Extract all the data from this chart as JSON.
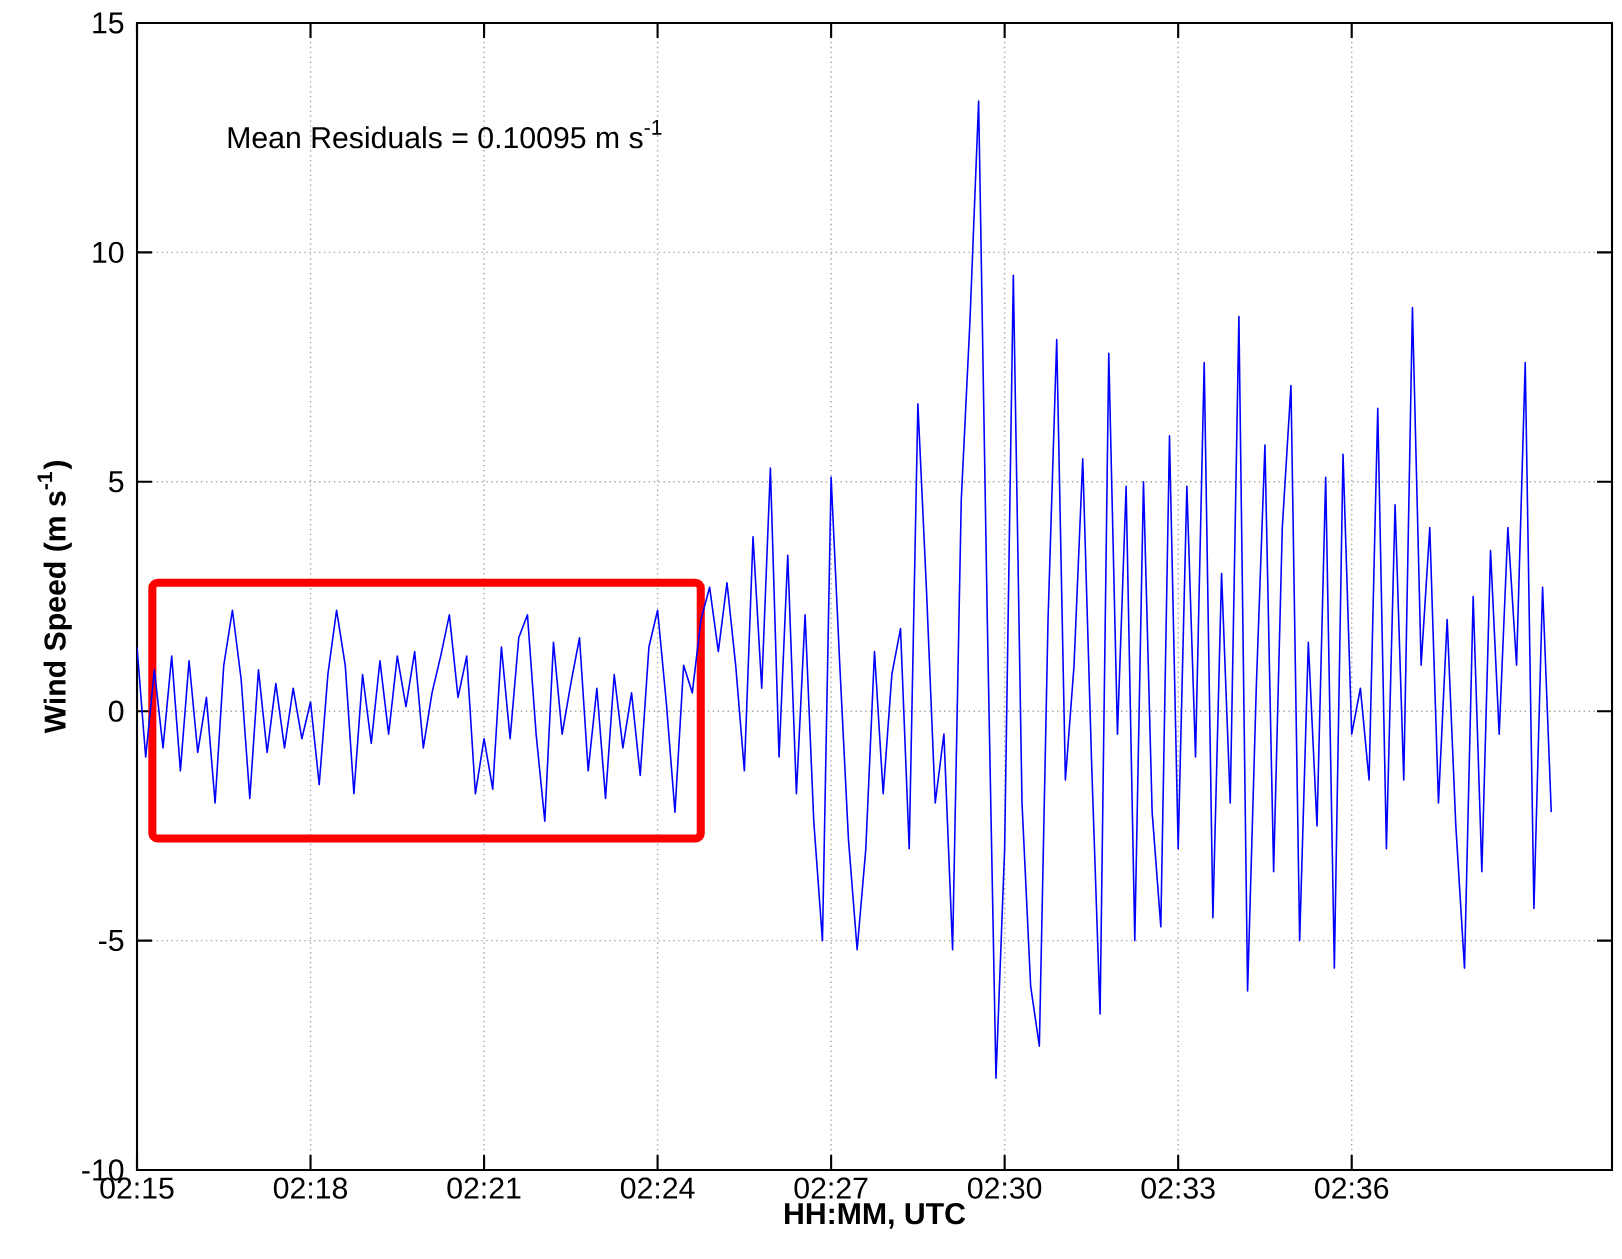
{
  "chart_data": {
    "type": "line",
    "xlabel": "**HH:MM, UTC**",
    "ylabel": "**Wind Speed (m s$^{-1}$)**",
    "annotations": [
      "Mean Residuals = 0.10095 m s$^{-1}$"
    ],
    "x": [
      2.25,
      2.2525,
      2.255,
      2.2575,
      2.26,
      2.2625,
      2.265,
      2.2675,
      2.27,
      2.2725,
      2.275,
      2.2775,
      2.28,
      2.2825,
      2.285,
      2.2875,
      2.29,
      2.2925,
      2.295,
      2.2975,
      2.3,
      2.3025,
      2.305,
      2.3075,
      2.31,
      2.3125,
      2.315,
      2.3175,
      2.32,
      2.3225,
      2.325,
      2.3275,
      2.33,
      2.3325,
      2.335,
      2.3375,
      2.34,
      2.3425,
      2.345,
      2.3475,
      2.35,
      2.3525,
      2.355,
      2.3575,
      2.36,
      2.3625,
      2.365,
      2.3675,
      2.37,
      2.3725,
      2.375,
      2.3775,
      2.38,
      2.3825,
      2.385,
      2.3875,
      2.39,
      2.3925,
      2.395,
      2.3975,
      2.4,
      2.4025,
      2.405,
      2.4075,
      2.41,
      2.4125,
      2.415,
      2.4175,
      2.42,
      2.4225,
      2.425,
      2.4275,
      2.43,
      2.4325,
      2.435,
      2.4375,
      2.44,
      2.4425,
      2.445,
      2.4475,
      2.45,
      2.4525,
      2.455,
      2.4575,
      2.46,
      2.4625,
      2.465,
      2.4675,
      2.47,
      2.4725,
      2.475,
      2.4775,
      2.48,
      2.4825,
      2.485,
      2.4875,
      2.49,
      2.4925,
      2.495,
      2.4975,
      2.5,
      2.5025,
      2.505,
      2.5075,
      2.51,
      2.5125,
      2.515,
      2.5175,
      2.52,
      2.5225,
      2.525,
      2.5275,
      2.53,
      2.5325,
      2.535,
      2.5375,
      2.54,
      2.5425,
      2.545,
      2.5475,
      2.55,
      2.5525,
      2.555,
      2.5575,
      2.56,
      2.5625,
      2.565,
      2.5675,
      2.57,
      2.5725,
      2.575,
      2.5775,
      2.58,
      2.5825,
      2.585,
      2.5875,
      2.59,
      2.5925,
      2.595,
      2.5975,
      2.6,
      2.6025,
      2.605,
      2.6075,
      2.61,
      2.6125,
      2.615,
      2.6175,
      2.62,
      2.6225,
      2.625,
      2.6275,
      2.63,
      2.6325,
      2.635,
      2.6375,
      2.64,
      2.6425,
      2.645,
      2.6475,
      2.65,
      2.6525,
      2.655,
      2.6575
    ],
    "series": [
      {
        "color": "#0000ff",
        "values": [
          1.4,
          -1.0,
          0.9,
          -0.8,
          1.2,
          -1.3,
          1.1,
          -0.9,
          0.3,
          -2.0,
          1.0,
          2.2,
          0.7,
          -1.9,
          0.9,
          -0.9,
          0.6,
          -0.8,
          0.5,
          -0.6,
          0.2,
          -1.6,
          0.8,
          2.2,
          1.0,
          -1.8,
          0.8,
          -0.7,
          1.1,
          -0.5,
          1.2,
          0.1,
          1.3,
          -0.8,
          0.4,
          1.2,
          2.1,
          0.3,
          1.2,
          -1.8,
          -0.6,
          -1.7,
          1.4,
          -0.6,
          1.6,
          2.1,
          -0.5,
          -2.4,
          1.5,
          -0.5,
          0.6,
          1.6,
          -1.3,
          0.5,
          -1.9,
          0.8,
          -0.8,
          0.4,
          -1.4,
          1.4,
          2.2,
          0.2,
          -2.2,
          1.0,
          0.4,
          2.0,
          2.7,
          1.3,
          2.8,
          1.0,
          -1.3,
          3.8,
          0.5,
          5.3,
          -1.0,
          3.4,
          -1.8,
          2.1,
          -2.4,
          -5.0,
          5.1,
          1.0,
          -2.8,
          -5.2,
          -3.0,
          1.3,
          -1.8,
          0.8,
          1.8,
          -3.0,
          6.7,
          2.6,
          -2.0,
          -0.5,
          -5.2,
          4.6,
          8.5,
          13.3,
          2.0,
          -8.0,
          -3.0,
          9.5,
          -2.0,
          -6.0,
          -7.3,
          2.0,
          8.1,
          -1.5,
          1.0,
          5.5,
          -1.0,
          -6.6,
          7.8,
          -0.5,
          4.9,
          -5.0,
          5.0,
          -2.2,
          -4.7,
          6.0,
          -3.0,
          4.9,
          -1.0,
          7.6,
          -4.5,
          3.0,
          -2.0,
          8.6,
          -6.1,
          0.5,
          5.8,
          -3.5,
          4.0,
          7.1,
          -5.0,
          1.5,
          -2.5,
          5.1,
          -5.6,
          5.6,
          -0.5,
          0.5,
          -1.5,
          6.6,
          -3.0,
          4.5,
          -1.5,
          8.8,
          1.0,
          4.0,
          -2.0,
          2.0,
          -2.5,
          -5.6,
          2.5,
          -3.5,
          3.5,
          -0.5,
          4.0,
          1.0,
          7.6,
          -4.3,
          2.7,
          -2.2
        ]
      }
    ],
    "xlim": [
      2.25,
      2.675
    ],
    "ylim": [
      -10,
      15
    ],
    "xticks": [
      {
        "value": 2.25,
        "label": "02:15"
      },
      {
        "value": 2.3,
        "label": "02:18"
      },
      {
        "value": 2.35,
        "label": "02:21"
      },
      {
        "value": 2.4,
        "label": "02:24"
      },
      {
        "value": 2.45,
        "label": "02:27"
      },
      {
        "value": 2.5,
        "label": "02:30"
      },
      {
        "value": 2.55,
        "label": "02:33"
      },
      {
        "value": 2.6,
        "label": "02:36"
      }
    ],
    "yticks": [
      -10,
      -5,
      0,
      5,
      10,
      15
    ],
    "grid": true,
    "line_style": "solid",
    "marker": "none"
  }
}
